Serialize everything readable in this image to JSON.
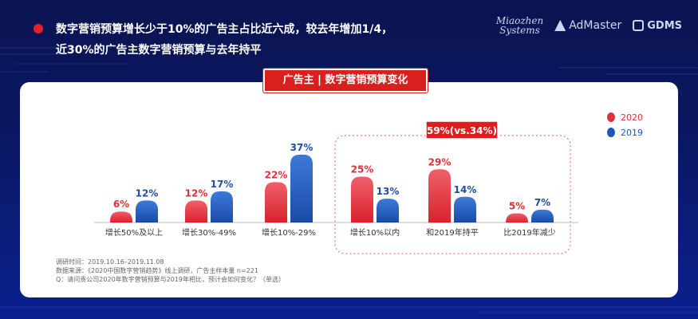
{
  "headline": {
    "line1": "数字营销预算增长少于10%的广告主占比近六成，较去年增加1/4，",
    "line2": "近30%的广告主数字营销预算与去年持平"
  },
  "logos": {
    "miaozhen_1": "Miaozhen",
    "miaozhen_2": "Systems",
    "admaster": "AdMaster",
    "gdms": "GDMS"
  },
  "chart_data": {
    "type": "bar",
    "title": "广告主 | 数字营销预算变化",
    "categories": [
      "增长50%及以上",
      "增长30%-49%",
      "增长10%-29%",
      "增长10%以内",
      "和2019年持平",
      "比2019年减少"
    ],
    "series": [
      {
        "name": "2020",
        "values": [
          6,
          12,
          22,
          25,
          29,
          5
        ],
        "labels": [
          "6%",
          "12%",
          "22%",
          "25%",
          "29%",
          "5%"
        ],
        "color": "#e0303a"
      },
      {
        "name": "2019",
        "values": [
          12,
          17,
          37,
          13,
          14,
          7
        ],
        "labels": [
          "12%",
          "17%",
          "37%",
          "13%",
          "14%",
          "7%"
        ],
        "color": "#1e56b8"
      }
    ],
    "legend_position": "right",
    "callout": "59%(vs.34%)",
    "highlight_categories": [
      3,
      4,
      5
    ]
  },
  "footnotes": {
    "line1": "调研时间：2019.10.16–2019.11.08",
    "line2": "数据来源：《2020中国数字营销趋势》线上调研，广告主样本量 n=221",
    "line3": "Q：请问贵公司2020年数字营销预算与2019年相比，预计会如何变化？（单选）"
  },
  "colors": {
    "accent_red": "#d9201f",
    "series_2020": "#e0303a",
    "series_2019": "#1e56b8",
    "background": "#0b1a6a"
  }
}
